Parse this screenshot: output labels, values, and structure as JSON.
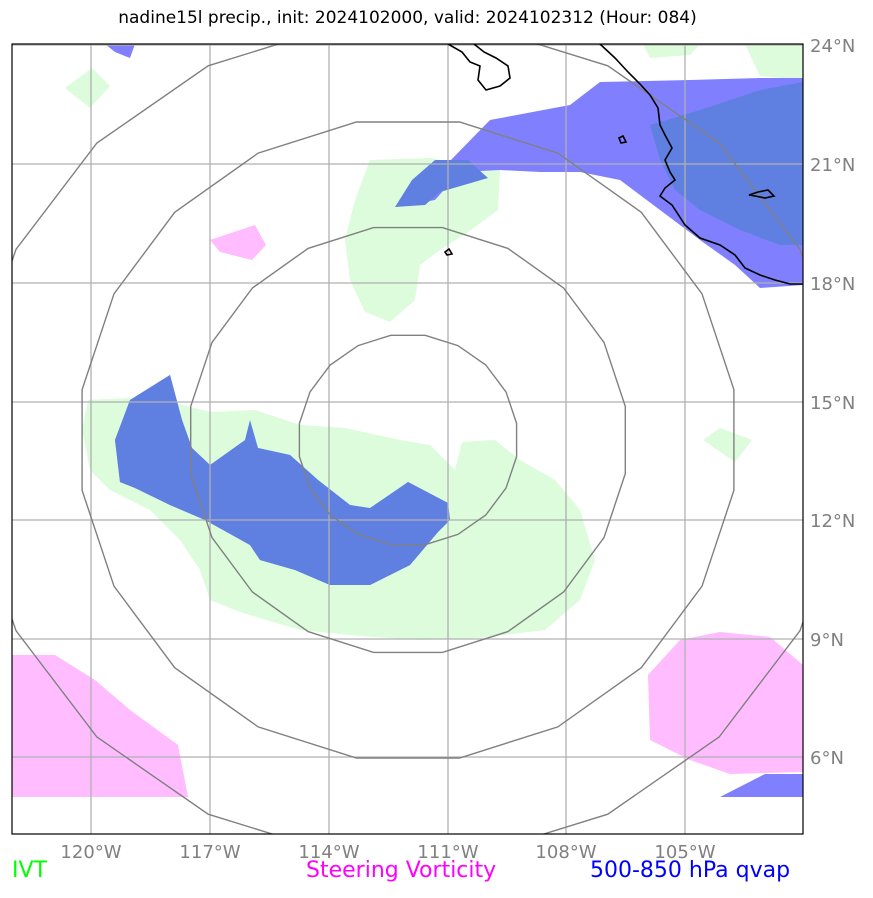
{
  "title": "nadine15l precip., init: 2024102000, valid: 2024102312 (Hour: 084)",
  "lon_ticks": [
    "120°W",
    "117°W",
    "114°W",
    "111°W",
    "108°W",
    "105°W"
  ],
  "lat_ticks": [
    "24°N",
    "21°N",
    "18°N",
    "15°N",
    "12°N",
    "9°N",
    "6°N"
  ],
  "legend": [
    {
      "label": "IVT",
      "color": "#00ff00"
    },
    {
      "label": "Steering Vorticity",
      "color": "#ff00ff"
    },
    {
      "label": "500-850 hPa qvap",
      "color": "#0000ff"
    }
  ],
  "colors": {
    "ivt_fill": "#dcfcdc",
    "vorticity_fill": "#ffbcff",
    "qvap_fill": "#8080ff",
    "overlap_fill": "#5f80e0",
    "grid": "#b0b0b0",
    "range_rings": "#808080",
    "coastline": "#000000"
  }
}
